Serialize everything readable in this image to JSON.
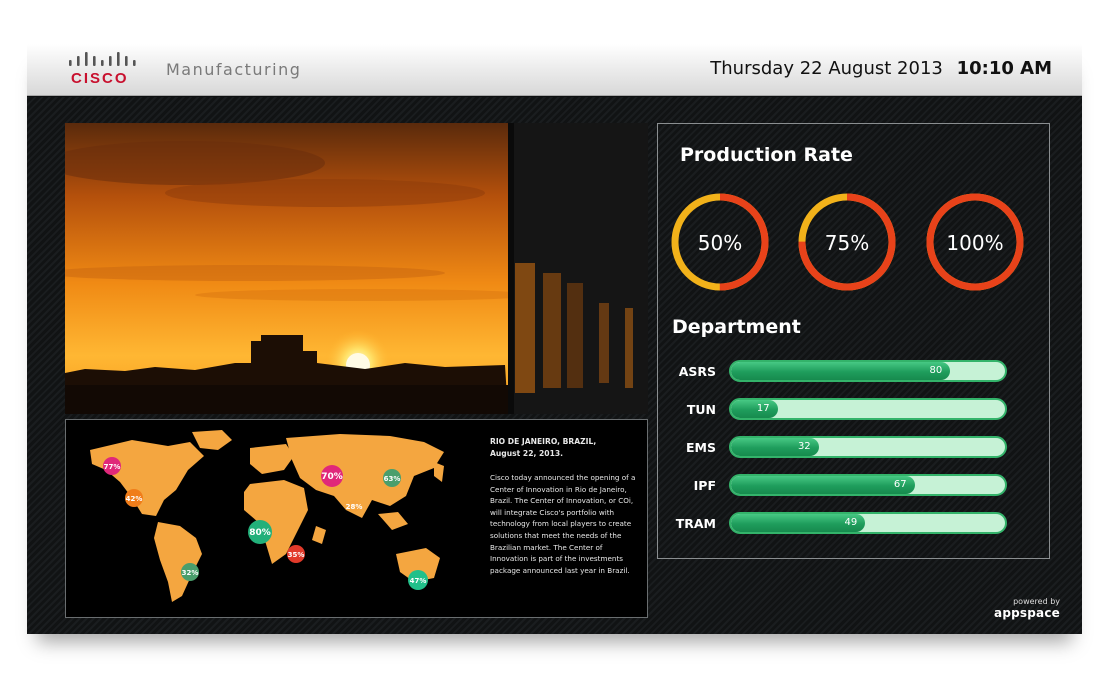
{
  "header": {
    "logo_text": "CISCO",
    "app_title": "Manufacturing",
    "date": "Thursday 22 August 2013",
    "time": "10:10 AM"
  },
  "news": {
    "headline_line1": "RIO DE JANEIRO, BRAZIL,",
    "headline_line2": "August 22, 2013.",
    "body": "Cisco today announced the opening of a Center of Innovation in Rio de Janeiro, Brazil. The Center of Innovation, or COi, will integrate Cisco's portfolio with technology from local players to create solutions that meet the needs of the Brazilian market. The Center of Innovation is part of the investments package announced last year in Brazil."
  },
  "map": {
    "markers": [
      {
        "label": "77%",
        "color": "#e0287a"
      },
      {
        "label": "42%",
        "color": "#f07d1a"
      },
      {
        "label": "70%",
        "color": "#e0287a"
      },
      {
        "label": "63%",
        "color": "#4a9e6c"
      },
      {
        "label": "28%",
        "color": "#f4a23c"
      },
      {
        "label": "80%",
        "color": "#22b07a"
      },
      {
        "label": "35%",
        "color": "#e23a2a"
      },
      {
        "label": "32%",
        "color": "#4a9e6c"
      },
      {
        "label": "47%",
        "color": "#22c08a"
      }
    ]
  },
  "production": {
    "title": "Production Rate",
    "rings": [
      {
        "label": "50%",
        "value": 50
      },
      {
        "label": "75%",
        "value": 75
      },
      {
        "label": "100%",
        "value": 100
      }
    ]
  },
  "department": {
    "title": "Department",
    "rows": [
      {
        "name": "ASRS",
        "value": 80,
        "label": "80"
      },
      {
        "name": "TUN",
        "value": 17,
        "label": "17"
      },
      {
        "name": "EMS",
        "value": 32,
        "label": "32"
      },
      {
        "name": "IPF",
        "value": 67,
        "label": "67"
      },
      {
        "name": "TRAM",
        "value": 49,
        "label": "49"
      }
    ]
  },
  "footer": {
    "powered_by": "powered by",
    "brand": "appspace"
  },
  "colors": {
    "ring_filled": "#e8421a",
    "ring_remaining": "#f2b21a",
    "bar_fill": "#1f9d5c",
    "bar_track": "#c6f2d6"
  }
}
